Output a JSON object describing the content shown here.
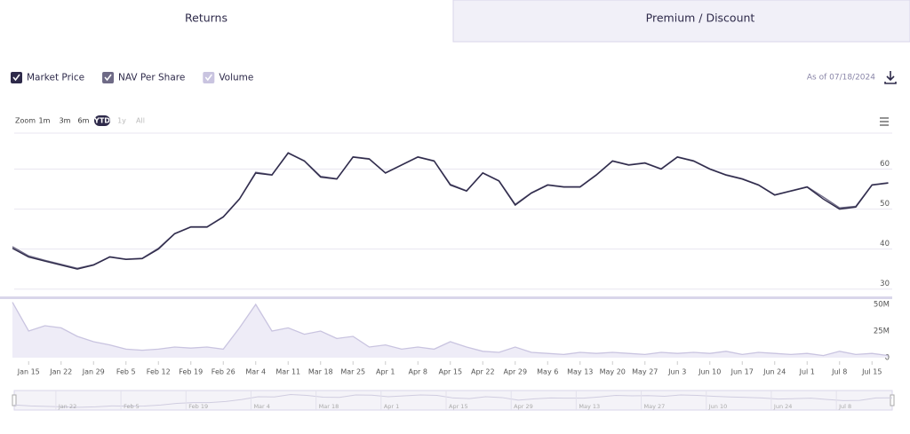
{
  "tabs": [
    "Returns",
    "Premium / Discount"
  ],
  "as_of": "As of 07/18/2024",
  "zoom": {
    "label": "Zoom",
    "buttons": [
      "1m",
      "3m",
      "6m",
      "YTD",
      "1y",
      "All"
    ],
    "selected": "YTD"
  },
  "chart_data": {
    "type": "line",
    "x": [
      "Jan 12",
      "Jan 15",
      "Jan 18",
      "Jan 22",
      "Jan 25",
      "Jan 29",
      "Feb 1",
      "Feb 5",
      "Feb 8",
      "Feb 12",
      "Feb 15",
      "Feb 19",
      "Feb 22",
      "Feb 26",
      "Feb 29",
      "Mar 4",
      "Mar 7",
      "Mar 11",
      "Mar 14",
      "Mar 18",
      "Mar 21",
      "Mar 25",
      "Mar 28",
      "Apr 1",
      "Apr 4",
      "Apr 8",
      "Apr 11",
      "Apr 15",
      "Apr 18",
      "Apr 22",
      "Apr 25",
      "Apr 29",
      "May 2",
      "May 6",
      "May 9",
      "May 13",
      "May 16",
      "May 20",
      "May 23",
      "May 27",
      "May 30",
      "Jun 3",
      "Jun 6",
      "Jun 10",
      "Jun 13",
      "Jun 17",
      "Jun 20",
      "Jun 24",
      "Jun 27",
      "Jul 1",
      "Jul 4",
      "Jul 8",
      "Jul 11",
      "Jul 15",
      "Jul 18"
    ],
    "xticks": [
      "Jan 15",
      "Jan 22",
      "Jan 29",
      "Feb 5",
      "Feb 12",
      "Feb 19",
      "Feb 26",
      "Mar 4",
      "Mar 11",
      "Mar 18",
      "Mar 25",
      "Apr 1",
      "Apr 8",
      "Apr 15",
      "Apr 22",
      "Apr 29",
      "May 6",
      "May 13",
      "May 20",
      "May 27",
      "Jun 3",
      "Jun 10",
      "Jun 17",
      "Jun 24",
      "Jul 1",
      "Jul 8",
      "Jul 15"
    ],
    "navigator_ticks": [
      "Jan 22",
      "Feb 5",
      "Feb 19",
      "Mar 4",
      "Mar 18",
      "Apr 1",
      "Apr 15",
      "Apr 29",
      "May 13",
      "May 27",
      "Jun 10",
      "Jun 24",
      "Jul 8"
    ],
    "ylim": [
      28.6,
      69
    ],
    "yticks": [
      30,
      40,
      50,
      60
    ],
    "grid": true,
    "y2lim": [
      0,
      55000000
    ],
    "y2ticks": [
      0,
      {
        "value": 25000000,
        "label": "25M"
      },
      {
        "value": 50000000,
        "label": "50M"
      }
    ],
    "series": [
      {
        "name": "Market Price",
        "color": "#2e2a4a",
        "values": [
          40.2,
          38,
          37,
          36,
          35,
          36,
          38,
          37.4,
          37.6,
          40,
          43.8,
          45.5,
          45.5,
          48,
          52.5,
          59,
          58.5,
          64,
          62,
          58,
          57.5,
          63,
          62.5,
          59,
          61,
          63,
          62,
          56,
          54.5,
          59,
          57,
          51,
          54,
          56,
          55.5,
          55.5,
          58.5,
          62,
          61,
          61.5,
          60,
          63,
          62,
          60,
          58.5,
          57.5,
          56,
          53.5,
          54.5,
          55.5,
          52.5,
          50,
          50.5,
          56,
          56.5
        ]
      },
      {
        "name": "NAV Per Share",
        "color": "#6e6a86",
        "values": [
          40.6,
          38.3,
          37.2,
          36.2,
          35.2,
          36.1,
          38.1,
          37.5,
          37.7,
          40.2,
          43.9,
          45.6,
          45.6,
          48.1,
          52.6,
          59.2,
          58.6,
          64.1,
          62.1,
          58.2,
          57.6,
          63.1,
          62.6,
          59.1,
          61.1,
          63.1,
          62.1,
          56.2,
          54.6,
          59.1,
          57.1,
          51.2,
          54.1,
          56.1,
          55.6,
          55.6,
          58.6,
          62.1,
          61.1,
          61.6,
          60.1,
          63.1,
          62.1,
          60.1,
          58.6,
          57.6,
          56.1,
          53.6,
          54.6,
          55.6,
          53,
          50.3,
          50.7,
          56.1,
          56.6
        ]
      },
      {
        "name": "Volume",
        "color": "#c9c4e0",
        "axis": "y2",
        "values": [
          52000000,
          25000000,
          30000000,
          28000000,
          20000000,
          15000000,
          12000000,
          8000000,
          7000000,
          8000000,
          10000000,
          9000000,
          10000000,
          8000000,
          28000000,
          50000000,
          25000000,
          28000000,
          22000000,
          25000000,
          18000000,
          20000000,
          10000000,
          12000000,
          8000000,
          10000000,
          8000000,
          15000000,
          10000000,
          6000000,
          5000000,
          10000000,
          5000000,
          4000000,
          3000000,
          5000000,
          4000000,
          5000000,
          4000000,
          3000000,
          5000000,
          4000000,
          5000000,
          4000000,
          6000000,
          3000000,
          5000000,
          4000000,
          3000000,
          4000000,
          2000000,
          6000000,
          3000000,
          4000000,
          2000000
        ]
      }
    ]
  }
}
